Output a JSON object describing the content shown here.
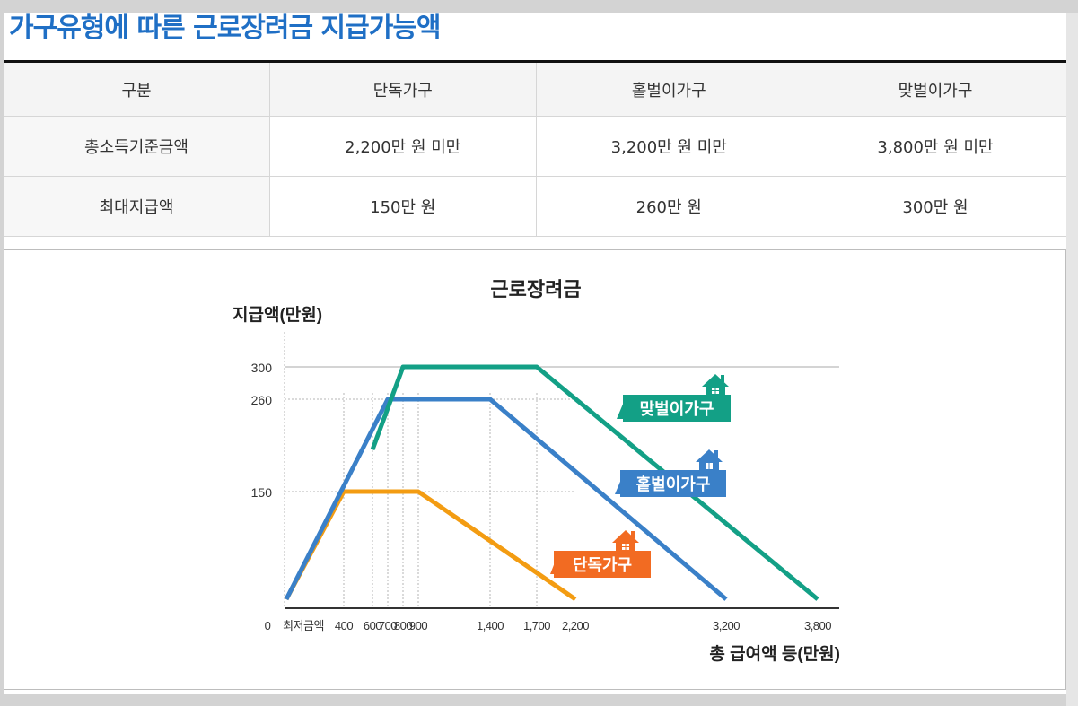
{
  "page": {
    "title": "가구유형에 따른 근로장려금 지급가능액"
  },
  "table": {
    "headers": [
      "구분",
      "단독가구",
      "홑벌이가구",
      "맞벌이가구"
    ],
    "rows": [
      {
        "label": "총소득기준금액",
        "values": [
          "2,200만 원 미만",
          "3,200만 원 미만",
          "3,800만 원 미만"
        ]
      },
      {
        "label": "최대지급액",
        "values": [
          "150만 원",
          "260만 원",
          "300만 원"
        ]
      }
    ]
  },
  "chart_data": {
    "type": "line",
    "title": "근로장려금",
    "ylabel": "지급액(만원)",
    "xlabel": "총 급여액 등(만원)",
    "x_ticks": [
      "0",
      "최저금액",
      "400",
      "600",
      "700",
      "800",
      "900",
      "1,400",
      "1,700",
      "2,200",
      "3,200",
      "3,800"
    ],
    "x_tick_values": [
      0,
      0,
      400,
      600,
      700,
      800,
      900,
      1400,
      1700,
      2200,
      3200,
      3800
    ],
    "y_ticks": [
      "300",
      "260",
      "150"
    ],
    "y_tick_values": [
      300,
      260,
      150
    ],
    "xlim": [
      0,
      3800
    ],
    "ylim": [
      0,
      300
    ],
    "series": [
      {
        "name": "단독가구",
        "color": "#f39c12",
        "label_color": "#f26b22",
        "points": [
          [
            0,
            0
          ],
          [
            400,
            150
          ],
          [
            900,
            150
          ],
          [
            2200,
            0
          ]
        ]
      },
      {
        "name": "홑벌이가구",
        "color": "#3a80c8",
        "label_color": "#3a80c8",
        "points": [
          [
            0,
            0
          ],
          [
            700,
            260
          ],
          [
            1400,
            260
          ],
          [
            3200,
            0
          ]
        ]
      },
      {
        "name": "맞벌이가구",
        "color": "#13a086",
        "label_color": "#13a086",
        "points": [
          [
            600,
            200
          ],
          [
            800,
            300
          ],
          [
            1700,
            300
          ],
          [
            3800,
            0
          ]
        ]
      }
    ]
  }
}
